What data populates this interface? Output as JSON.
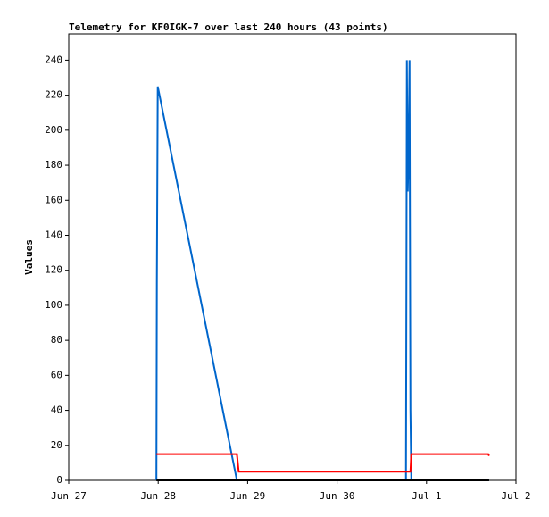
{
  "chart_data": {
    "type": "line",
    "title": "Telemetry for KF0IGK-7 over last 240 hours (43 points)",
    "y_label": "Values",
    "xlim": [
      0,
      5
    ],
    "xticks": [
      {
        "value": 0,
        "label": "Jun 27"
      },
      {
        "value": 1,
        "label": "Jun 28"
      },
      {
        "value": 2,
        "label": "Jun 29"
      },
      {
        "value": 3,
        "label": "Jun 30"
      },
      {
        "value": 4,
        "label": "Jul 1"
      },
      {
        "value": 5,
        "label": "Jul 2"
      }
    ],
    "ylim": [
      0,
      255
    ],
    "yticks": [
      0,
      20,
      40,
      60,
      80,
      100,
      120,
      140,
      160,
      180,
      200,
      220,
      240
    ],
    "grid": false,
    "series": [
      {
        "color": "#0066cc",
        "x": [
          0.98,
          0.985,
          0.995,
          1.88,
          3.77,
          3.775,
          3.78,
          3.79,
          3.8,
          3.81,
          3.82,
          3.83,
          4.7
        ],
        "values": [
          0,
          112,
          225,
          0,
          0,
          112,
          240,
          165,
          187,
          240,
          40,
          0,
          0
        ]
      },
      {
        "color": "#ff0000",
        "x": [
          0.98,
          1.88,
          1.9,
          3.82,
          3.83,
          4.69,
          4.7
        ],
        "values": [
          15,
          15,
          5,
          5,
          15,
          15,
          14
        ]
      },
      {
        "color": "#000000",
        "x": [
          0.98,
          4.7
        ],
        "values": [
          0,
          0
        ]
      }
    ]
  }
}
